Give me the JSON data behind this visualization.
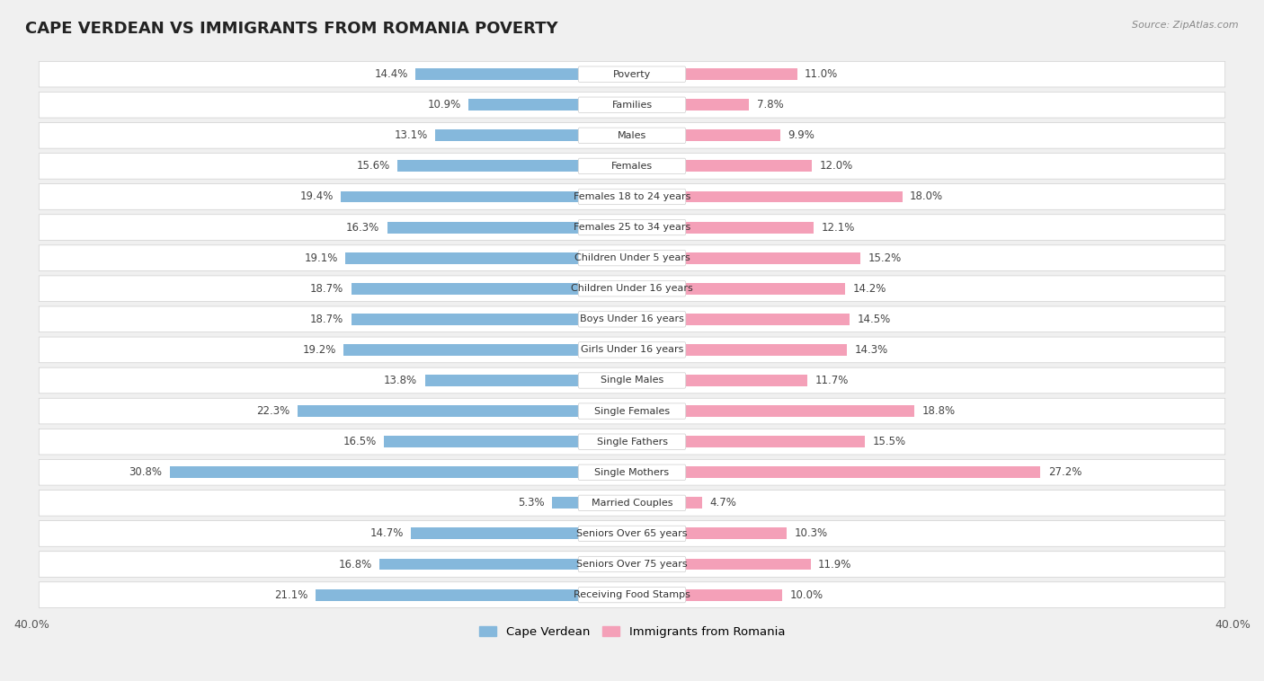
{
  "title": "CAPE VERDEAN VS IMMIGRANTS FROM ROMANIA POVERTY",
  "source": "Source: ZipAtlas.com",
  "categories": [
    "Poverty",
    "Families",
    "Males",
    "Females",
    "Females 18 to 24 years",
    "Females 25 to 34 years",
    "Children Under 5 years",
    "Children Under 16 years",
    "Boys Under 16 years",
    "Girls Under 16 years",
    "Single Males",
    "Single Females",
    "Single Fathers",
    "Single Mothers",
    "Married Couples",
    "Seniors Over 65 years",
    "Seniors Over 75 years",
    "Receiving Food Stamps"
  ],
  "cape_verdean": [
    14.4,
    10.9,
    13.1,
    15.6,
    19.4,
    16.3,
    19.1,
    18.7,
    18.7,
    19.2,
    13.8,
    22.3,
    16.5,
    30.8,
    5.3,
    14.7,
    16.8,
    21.1
  ],
  "romania": [
    11.0,
    7.8,
    9.9,
    12.0,
    18.0,
    12.1,
    15.2,
    14.2,
    14.5,
    14.3,
    11.7,
    18.8,
    15.5,
    27.2,
    4.7,
    10.3,
    11.9,
    10.0
  ],
  "cape_verdean_color": "#85b8dc",
  "romania_color": "#f4a0b8",
  "background_color": "#f0f0f0",
  "row_bg_color": "#ffffff",
  "alt_row_bg_color": "#e8e8e8",
  "xlim": 40.0,
  "legend_label_cv": "Cape Verdean",
  "legend_label_ro": "Immigrants from Romania"
}
